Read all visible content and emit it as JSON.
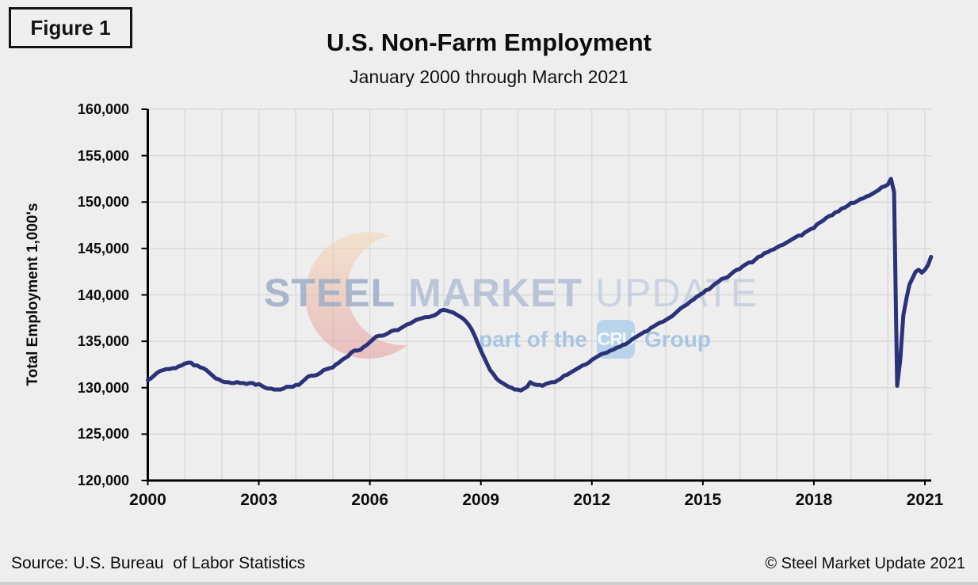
{
  "figure_label": "Figure 1",
  "title": "U.S. Non-Farm Employment",
  "subtitle": "January 2000 through March 2021",
  "footer": {
    "source": "Source: U.S. Bureau  of Labor Statistics",
    "copyright": "© Steel Market Update 2021"
  },
  "watermark": {
    "word_steel": "STEEL",
    "word_market": "MARKET",
    "word_update": "UPDATE",
    "tagline_prefix": "part of the",
    "tagline_badge": "CRU",
    "tagline_suffix": "Group"
  },
  "colors": {
    "background": "#eeeeee",
    "gridline": "#d9d9d9",
    "axis": "#000000",
    "line": "#2b3277",
    "crescent_top": "#f6d8b4",
    "crescent_bottom": "#e49b9c",
    "watermark_blue": "#9fadc6",
    "watermark_light_blue": "#a5c4e2"
  },
  "chart_data": {
    "type": "line",
    "title": "U.S. Non-Farm Employment",
    "subtitle": "January 2000 through March 2021",
    "xlabel": "",
    "ylabel": "Total Employment 1,000's",
    "ylim": [
      120000,
      160000
    ],
    "y_tick_step": 5000,
    "x_ticks": [
      2000,
      2003,
      2006,
      2009,
      2012,
      2015,
      2018,
      2021
    ],
    "xlim": [
      2000,
      2021.25
    ],
    "grid": true,
    "legend": "none",
    "line_color": "#2b3277",
    "series": [
      {
        "name": "Total Non-Farm Employment (1,000's)",
        "frequency": "monthly",
        "start_year": 2000,
        "start_month": 1,
        "values": [
          130800,
          131000,
          131300,
          131600,
          131800,
          131900,
          132000,
          132000,
          132100,
          132100,
          132300,
          132400,
          132600,
          132700,
          132700,
          132400,
          132400,
          132200,
          132100,
          131900,
          131600,
          131300,
          131000,
          130900,
          130700,
          130600,
          130600,
          130500,
          130500,
          130600,
          130500,
          130500,
          130400,
          130500,
          130500,
          130300,
          130400,
          130200,
          130000,
          129900,
          129900,
          129800,
          129800,
          129800,
          129900,
          130100,
          130100,
          130100,
          130300,
          130300,
          130600,
          130900,
          131200,
          131300,
          131300,
          131400,
          131600,
          131900,
          132000,
          132100,
          132200,
          132500,
          132700,
          133000,
          133200,
          133400,
          133800,
          134000,
          134000,
          134100,
          134400,
          134600,
          134900,
          135200,
          135500,
          135600,
          135600,
          135700,
          135900,
          136100,
          136200,
          136200,
          136400,
          136600,
          136800,
          136900,
          137100,
          137300,
          137400,
          137500,
          137600,
          137600,
          137700,
          137800,
          138000,
          138300,
          138400,
          138300,
          138200,
          138100,
          137900,
          137700,
          137500,
          137200,
          136800,
          136300,
          135600,
          134800,
          134000,
          133300,
          132600,
          131900,
          131500,
          131000,
          130700,
          130500,
          130300,
          130100,
          130000,
          129800,
          129800,
          129700,
          129900,
          130100,
          130600,
          130400,
          130300,
          130300,
          130200,
          130400,
          130500,
          130600,
          130600,
          130800,
          131000,
          131300,
          131400,
          131600,
          131800,
          132000,
          132200,
          132400,
          132500,
          132700,
          133000,
          133200,
          133400,
          133600,
          133700,
          133800,
          134000,
          134100,
          134300,
          134400,
          134600,
          134700,
          134900,
          135200,
          135400,
          135600,
          135800,
          136000,
          136100,
          136400,
          136600,
          136800,
          137000,
          137100,
          137300,
          137500,
          137700,
          138000,
          138300,
          138600,
          138800,
          139000,
          139300,
          139500,
          139800,
          140000,
          140200,
          140500,
          140600,
          140900,
          141200,
          141400,
          141700,
          141800,
          141900,
          142200,
          142500,
          142700,
          142800,
          143100,
          143300,
          143500,
          143500,
          143800,
          144100,
          144200,
          144500,
          144600,
          144800,
          144900,
          145100,
          145300,
          145400,
          145600,
          145800,
          146000,
          146200,
          146400,
          146400,
          146700,
          146900,
          147100,
          147200,
          147600,
          147800,
          148000,
          148300,
          148500,
          148600,
          148900,
          149000,
          149300,
          149400,
          149600,
          149900,
          149900,
          150100,
          150300,
          150400,
          150600,
          150700,
          150900,
          151100,
          151300,
          151600,
          151700,
          151900,
          152500,
          151100,
          130200,
          133000,
          137800,
          139600,
          141100,
          141800,
          142500,
          142700,
          142400,
          142700,
          143200,
          144100
        ]
      }
    ]
  }
}
